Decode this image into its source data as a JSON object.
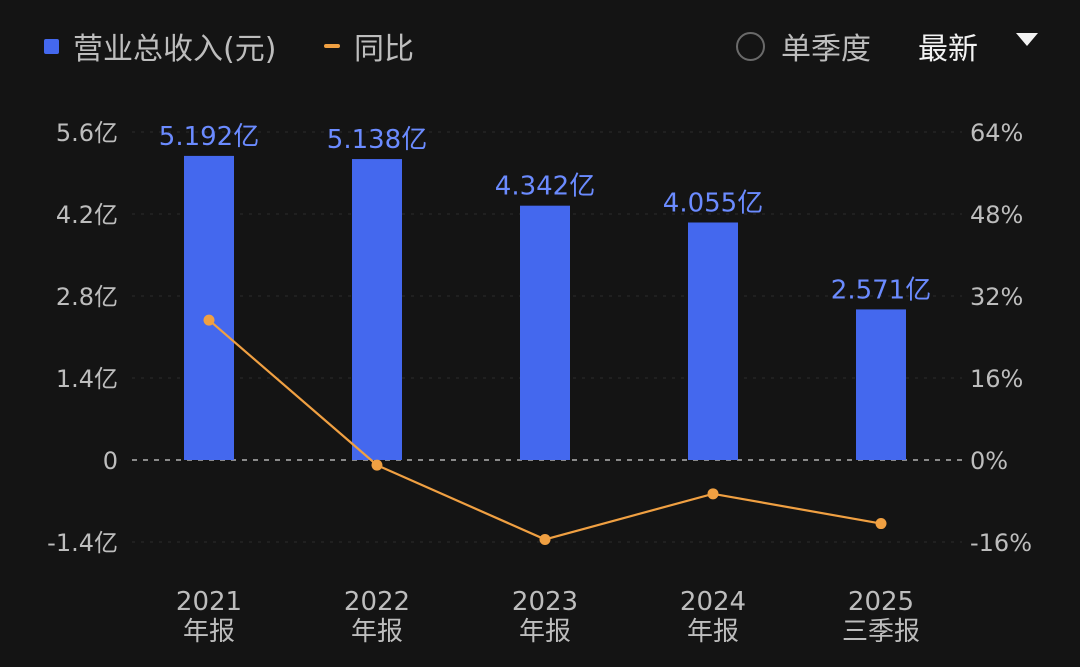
{
  "legend": {
    "revenue_label": "营业总收入(元)",
    "yoy_label": "同比"
  },
  "controls": {
    "quarter_label": "单季度",
    "latest_label": "最新"
  },
  "colors": {
    "bar": "#4468ee",
    "line": "#f0a042",
    "data_label": "#6b8bff",
    "background": "#141414"
  },
  "chart_data": {
    "type": "bar",
    "categories": [
      [
        "2021",
        "年报"
      ],
      [
        "2022",
        "年报"
      ],
      [
        "2023",
        "年报"
      ],
      [
        "2024",
        "年报"
      ],
      [
        "2025",
        "三季报"
      ]
    ],
    "series": [
      {
        "name": "营业总收入(元)",
        "type": "bar",
        "axis": "left",
        "values": [
          5.192,
          5.138,
          4.342,
          4.055,
          2.571
        ],
        "labels": [
          "5.192亿",
          "5.138亿",
          "4.342亿",
          "4.055亿",
          "2.571亿"
        ]
      },
      {
        "name": "同比",
        "type": "line",
        "axis": "right",
        "values": [
          27.3,
          -1.0,
          -15.5,
          -6.6,
          -12.4
        ]
      }
    ],
    "y_left": {
      "range": [
        -1.4,
        5.6
      ],
      "ticks": [
        5.6,
        4.2,
        2.8,
        1.4,
        0,
        -1.4
      ],
      "tick_labels": [
        "5.6亿",
        "4.2亿",
        "2.8亿",
        "1.4亿",
        "0",
        "-1.4亿"
      ]
    },
    "y_right": {
      "range": [
        -16,
        64
      ],
      "ticks": [
        64,
        48,
        32,
        16,
        0,
        -16
      ],
      "tick_labels": [
        "64%",
        "48%",
        "32%",
        "16%",
        "0%",
        "-16%"
      ]
    },
    "zero_line": "dashed",
    "grid": true,
    "legend_position": "top-left"
  }
}
